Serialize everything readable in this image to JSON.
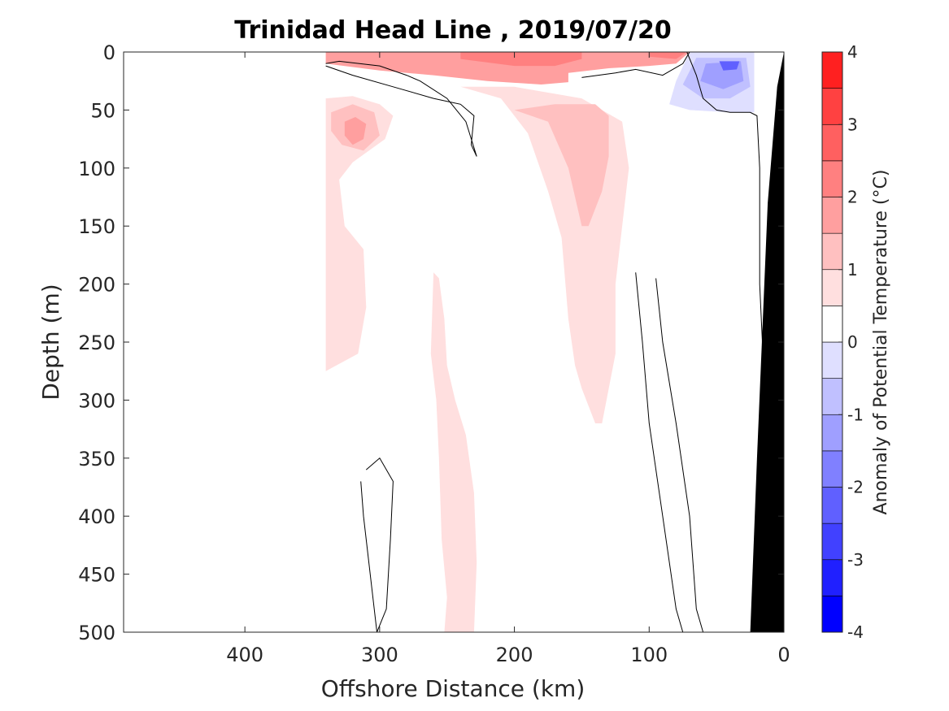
{
  "chart_data": {
    "type": "heatmap",
    "subtype": "filled-contour section",
    "title": "Trinidad Head Line , 2019/07/20",
    "xlabel": "Offshore Distance (km)",
    "ylabel": "Depth (m)",
    "colorbar_label": "Anomaly of Potential Temperature (°C)",
    "xlim": [
      490,
      0
    ],
    "ylim": [
      0,
      500
    ],
    "x_reversed": true,
    "y_reversed": true,
    "x_ticks": [
      400,
      300,
      200,
      100,
      0
    ],
    "x_tick_labels": [
      "400",
      "300",
      "200",
      "100",
      "0"
    ],
    "y_ticks": [
      0,
      50,
      100,
      150,
      200,
      250,
      300,
      350,
      400,
      450,
      500
    ],
    "y_tick_labels": [
      "0",
      "50",
      "100",
      "150",
      "200",
      "250",
      "300",
      "350",
      "400",
      "450",
      "500"
    ],
    "colorbar": {
      "range": [
        -4,
        4
      ],
      "ticks": [
        4,
        3,
        2,
        1,
        0,
        -1,
        -2,
        -3,
        -4
      ],
      "tick_labels": [
        "4",
        "3",
        "2",
        "1",
        "0",
        "-1",
        "-2",
        "-3",
        "-4"
      ],
      "levels": [
        -4,
        -3.5,
        -3,
        -2.5,
        -2,
        -1.5,
        -1,
        -0.5,
        0,
        0.5,
        1,
        1.5,
        2,
        2.5,
        3,
        3.5,
        4
      ],
      "colors": [
        "#0000ff",
        "#2020ff",
        "#4141ff",
        "#6060ff",
        "#8080ff",
        "#9f9fff",
        "#c0c0ff",
        "#dfdfff",
        "#ffffff",
        "#ffdfdf",
        "#ffc0c0",
        "#ff9f9f",
        "#ff8080",
        "#ff6060",
        "#ff4141",
        "#ff2020"
      ]
    },
    "data_extent_km": [
      0,
      340
    ],
    "bathymetry_color": "#000000",
    "anomaly_regions": [
      {
        "name": "surface warm layer",
        "level": 1.5,
        "polygon": [
          [
            340,
            0
          ],
          [
            340,
            10
          ],
          [
            300,
            16
          ],
          [
            260,
            20
          ],
          [
            220,
            25
          ],
          [
            180,
            28
          ],
          [
            160,
            26
          ],
          [
            160,
            18
          ],
          [
            130,
            14
          ],
          [
            100,
            12
          ],
          [
            80,
            10
          ],
          [
            70,
            0
          ]
        ]
      },
      {
        "name": "surface warm core",
        "level": 2,
        "polygon": [
          [
            240,
            0
          ],
          [
            240,
            6
          ],
          [
            200,
            12
          ],
          [
            170,
            12
          ],
          [
            150,
            6
          ],
          [
            150,
            0
          ]
        ]
      },
      {
        "name": "surface warm spot",
        "level": 2,
        "polygon": [
          [
            100,
            0
          ],
          [
            100,
            4
          ],
          [
            80,
            6
          ],
          [
            72,
            0
          ]
        ]
      },
      {
        "name": "subsurface warm blob west",
        "level": 0.5,
        "polygon": [
          [
            340,
            40
          ],
          [
            320,
            38
          ],
          [
            300,
            45
          ],
          [
            290,
            55
          ],
          [
            296,
            75
          ],
          [
            320,
            95
          ],
          [
            330,
            110
          ],
          [
            326,
            150
          ],
          [
            312,
            170
          ],
          [
            310,
            220
          ],
          [
            316,
            260
          ],
          [
            340,
            275
          ]
        ]
      },
      {
        "name": "subsurface warm core west",
        "level": 1,
        "polygon": [
          [
            336,
            52
          ],
          [
            320,
            45
          ],
          [
            304,
            52
          ],
          [
            300,
            72
          ],
          [
            312,
            85
          ],
          [
            328,
            80
          ],
          [
            336,
            68
          ]
        ]
      },
      {
        "name": "subsurface warm peak west",
        "level": 1.5,
        "polygon": [
          [
            326,
            60
          ],
          [
            318,
            56
          ],
          [
            310,
            62
          ],
          [
            312,
            75
          ],
          [
            320,
            80
          ],
          [
            326,
            72
          ]
        ]
      },
      {
        "name": "main warm tongue",
        "level": 0.5,
        "polygon": [
          [
            240,
            30
          ],
          [
            210,
            40
          ],
          [
            190,
            70
          ],
          [
            175,
            120
          ],
          [
            165,
            160
          ],
          [
            160,
            230
          ],
          [
            155,
            270
          ],
          [
            150,
            290
          ],
          [
            140,
            320
          ],
          [
            135,
            320
          ],
          [
            130,
            290
          ],
          [
            125,
            260
          ],
          [
            125,
            200
          ],
          [
            120,
            150
          ],
          [
            115,
            100
          ],
          [
            120,
            60
          ],
          [
            150,
            40
          ],
          [
            200,
            30
          ]
        ]
      },
      {
        "name": "main warm core",
        "level": 1,
        "polygon": [
          [
            200,
            50
          ],
          [
            175,
            60
          ],
          [
            160,
            100
          ],
          [
            150,
            150
          ],
          [
            145,
            150
          ],
          [
            135,
            120
          ],
          [
            130,
            90
          ],
          [
            130,
            55
          ],
          [
            140,
            45
          ],
          [
            170,
            45
          ]
        ]
      },
      {
        "name": "deep warm column",
        "level": 0.5,
        "polygon": [
          [
            260,
            190
          ],
          [
            262,
            260
          ],
          [
            258,
            300
          ],
          [
            256,
            350
          ],
          [
            254,
            420
          ],
          [
            250,
            470
          ],
          [
            252,
            500
          ],
          [
            230,
            500
          ],
          [
            228,
            440
          ],
          [
            230,
            380
          ],
          [
            236,
            330
          ],
          [
            244,
            300
          ],
          [
            250,
            270
          ],
          [
            252,
            230
          ],
          [
            256,
            195
          ]
        ]
      },
      {
        "name": "nearshore cool anomaly",
        "level": -0.5,
        "polygon": [
          [
            70,
            0
          ],
          [
            80,
            25
          ],
          [
            85,
            45
          ],
          [
            70,
            50
          ],
          [
            40,
            52
          ],
          [
            22,
            52
          ],
          [
            22,
            0
          ]
        ]
      },
      {
        "name": "nearshore cool mid",
        "level": -1,
        "polygon": [
          [
            65,
            5
          ],
          [
            75,
            28
          ],
          [
            60,
            40
          ],
          [
            40,
            40
          ],
          [
            25,
            30
          ],
          [
            28,
            5
          ]
        ]
      },
      {
        "name": "nearshore cool core",
        "level": -1.5,
        "polygon": [
          [
            58,
            10
          ],
          [
            62,
            25
          ],
          [
            45,
            32
          ],
          [
            30,
            25
          ],
          [
            32,
            8
          ]
        ]
      },
      {
        "name": "nearshore cool peak",
        "level": -2.5,
        "polygon": [
          [
            48,
            8
          ],
          [
            45,
            16
          ],
          [
            35,
            15
          ],
          [
            33,
            8
          ]
        ]
      }
    ],
    "zero_contours": [
      {
        "name": "upper contour",
        "points": [
          [
            340,
            12
          ],
          [
            320,
            20
          ],
          [
            290,
            30
          ],
          [
            260,
            40
          ],
          [
            240,
            45
          ],
          [
            230,
            55
          ],
          [
            232,
            80
          ],
          [
            228,
            90
          ],
          [
            236,
            60
          ],
          [
            250,
            40
          ],
          [
            270,
            25
          ],
          [
            280,
            20
          ],
          [
            300,
            12
          ],
          [
            330,
            8
          ],
          [
            340,
            10
          ]
        ]
      },
      {
        "name": "nearshore surface contour",
        "points": [
          [
            150,
            22
          ],
          [
            125,
            18
          ],
          [
            110,
            15
          ],
          [
            90,
            20
          ],
          [
            75,
            10
          ],
          [
            70,
            0
          ]
        ]
      },
      {
        "name": "slope contour",
        "points": [
          [
            72,
            0
          ],
          [
            65,
            20
          ],
          [
            60,
            40
          ],
          [
            50,
            50
          ],
          [
            40,
            52
          ],
          [
            25,
            52
          ],
          [
            20,
            55
          ],
          [
            18,
            100
          ],
          [
            18,
            200
          ],
          [
            14,
            300
          ],
          [
            16,
            400
          ],
          [
            14,
            500
          ]
        ]
      },
      {
        "name": "offshore contour",
        "points": [
          [
            95,
            195
          ],
          [
            90,
            250
          ],
          [
            80,
            320
          ],
          [
            70,
            400
          ],
          [
            65,
            480
          ],
          [
            60,
            500
          ]
        ]
      },
      {
        "name": "mid contour",
        "points": [
          [
            110,
            190
          ],
          [
            105,
            250
          ],
          [
            100,
            320
          ],
          [
            90,
            400
          ],
          [
            80,
            480
          ],
          [
            75,
            500
          ]
        ]
      },
      {
        "name": "deep closed contour",
        "points": [
          [
            310,
            360
          ],
          [
            300,
            350
          ],
          [
            290,
            370
          ],
          [
            292,
            420
          ],
          [
            295,
            480
          ],
          [
            302,
            500
          ],
          [
            306,
            460
          ],
          [
            312,
            400
          ],
          [
            314,
            370
          ]
        ]
      }
    ]
  }
}
